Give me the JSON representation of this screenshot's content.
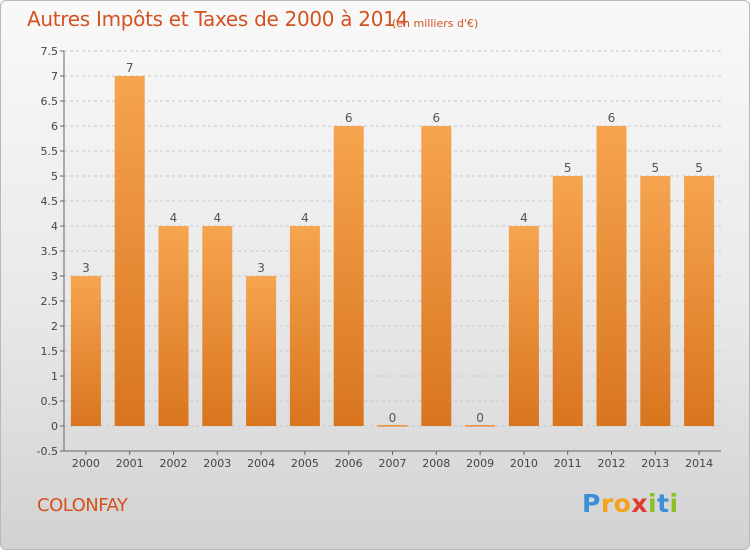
{
  "header": {
    "title": "Autres Impôts et Taxes de 2000 à 2014",
    "unit": "(en milliers d'€)"
  },
  "footer": {
    "commune": "COLONFAY",
    "logo": "Proxiti"
  },
  "colors": {
    "title": "#d2531f",
    "bar_light": "#f6a44f",
    "bar_dark": "#d9751f",
    "grid": "#c8c8c8"
  },
  "chart_data": {
    "type": "bar",
    "title": "Autres Impôts et Taxes de 2000 à 2014",
    "subtitle": "(en milliers d'€)",
    "xlabel": "",
    "ylabel": "",
    "categories": [
      "2000",
      "2001",
      "2002",
      "2003",
      "2004",
      "2005",
      "2006",
      "2007",
      "2008",
      "2009",
      "2010",
      "2011",
      "2012",
      "2013",
      "2014"
    ],
    "values": [
      3,
      7,
      4,
      4,
      3,
      4,
      6,
      0,
      6,
      0,
      4,
      5,
      6,
      5,
      5
    ],
    "data_labels": [
      "3",
      "7",
      "4",
      "4",
      "3",
      "4",
      "6",
      "0",
      "6",
      "0",
      "4",
      "5",
      "6",
      "5",
      "5"
    ],
    "ylim": [
      -0.5,
      7.5
    ],
    "yticks": [
      -0.5,
      0,
      0.5,
      1,
      1.5,
      2,
      2.5,
      3,
      3.5,
      4,
      4.5,
      5,
      5.5,
      6,
      6.5,
      7,
      7.5
    ],
    "ytick_labels": [
      "-0.5",
      "0",
      "0.5",
      "1",
      "1.5",
      "2",
      "2.5",
      "3",
      "3.5",
      "4",
      "4.5",
      "5",
      "5.5",
      "6",
      "6.5",
      "7",
      "7.5"
    ],
    "grid": true,
    "legend": "none"
  }
}
